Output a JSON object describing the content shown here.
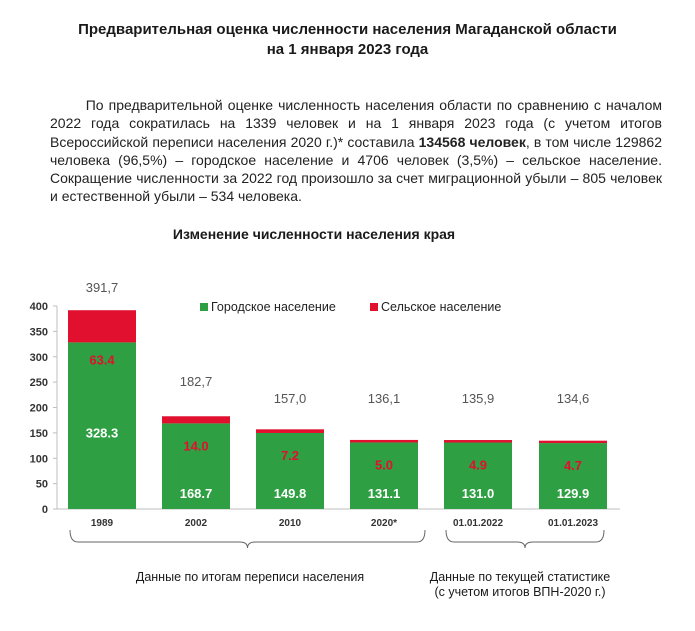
{
  "title": {
    "line1": "Предварительная оценка численности населения Магаданской области",
    "line2": "на 1 января 2023 года"
  },
  "paragraph": {
    "part1": "По предварительной оценке численность населения области по сравнению с началом 2022 года сократилась на 1339 человек и на 1 января 2023 года (с учетом итогов Всероссийской переписи населения 2020 г.)* составила ",
    "bold": "134568 человек",
    "part2": ", в том числе 129862 человека (96,5%) – городское население и 4706 человек (3,5%) – сельское население. Сокращение численности за 2022 год произошло за счет миграционной убыли – 805 человек и естественной убыли – 534 человека."
  },
  "chart_data": {
    "type": "bar",
    "stacked": true,
    "title": "Изменение численности населения края",
    "categories": [
      "1989",
      "2002",
      "2010",
      "2020*",
      "01.01.2022",
      "01.01.2023"
    ],
    "series": [
      {
        "name": "Городское население",
        "color": "#2ea043",
        "values": [
          328.3,
          168.7,
          149.8,
          131.1,
          131.0,
          129.9
        ],
        "labels": [
          "328.3",
          "168.7",
          "149.8",
          "131.1",
          "131.0",
          "129.9"
        ]
      },
      {
        "name": "Сельское население",
        "color": "#e0102e",
        "values": [
          63.4,
          14.0,
          7.2,
          5.0,
          4.9,
          4.7
        ],
        "labels": [
          "63.4",
          "14.0",
          "7.2",
          "5.0",
          "4.9",
          "4.7"
        ]
      }
    ],
    "totals": [
      "391,7",
      "182,7",
      "157,0",
      "136,1",
      "135,9",
      "134,6"
    ],
    "ylim": [
      0,
      400
    ],
    "yticks": [
      0,
      50,
      100,
      150,
      200,
      250,
      300,
      350,
      400
    ],
    "legend_position": "top",
    "grid": false,
    "groups": [
      {
        "label": "Данные по итогам переписи населения",
        "span": [
          0,
          3
        ]
      },
      {
        "label": "Данные по текущей статистике (с учетом итогов ВПН-2020 г.)",
        "span": [
          4,
          5
        ]
      }
    ]
  },
  "groups": {
    "census": "Данные по итогам переписи населения",
    "current_line1": "Данные по текущей статистике",
    "current_line2": "(с учетом итогов ВПН-2020 г.)"
  }
}
